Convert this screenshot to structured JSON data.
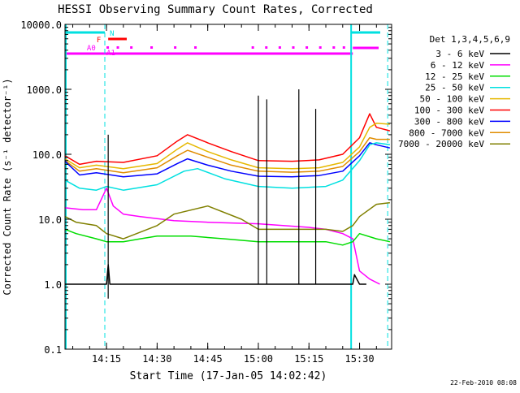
{
  "chart_data": {
    "type": "line",
    "title": "HESSI Observing Summary Count Rates, Corrected",
    "xlabel": "Start Time (17-Jan-05 14:02:42)",
    "ylabel": "Corrected Count Rate (s⁻¹ detector⁻¹)",
    "footer": "22-Feb-2010 08:08",
    "y_scale": "log",
    "ylim": [
      0.1,
      10000
    ],
    "xlim": [
      "14:02:42",
      "15:39:30"
    ],
    "x_ticks": [
      "14:15",
      "14:30",
      "14:45",
      "15:00",
      "15:15",
      "15:30"
    ],
    "y_ticks": [
      "0.1",
      "1.0",
      "10.0",
      "100.0",
      "1000.0",
      "10000.0"
    ],
    "legend": {
      "title": "Det 1,3,4,5,6,9",
      "placement": "right-outside",
      "entries": [
        {
          "label": "3 - 6 keV",
          "color": "#000000"
        },
        {
          "label": "6 - 12 keV",
          "color": "#ff00ff"
        },
        {
          "label": "12 - 25 keV",
          "color": "#00dd00"
        },
        {
          "label": "25 - 50 keV",
          "color": "#00e0e0"
        },
        {
          "label": "50 - 100 keV",
          "color": "#e6b800"
        },
        {
          "label": "100 - 300 keV",
          "color": "#ff0000"
        },
        {
          "label": "300 - 800 keV",
          "color": "#0000ff"
        },
        {
          "label": "800 - 7000 keV",
          "color": "#e08c00"
        },
        {
          "label": "7000 - 20000 keV",
          "color": "#808000"
        }
      ]
    },
    "flag_labels": [
      "N",
      "F",
      "A0",
      "A1"
    ],
    "series": [
      {
        "name": "100 - 300 keV",
        "color": "#ff0000",
        "x": [
          "14:02:42",
          "14:07",
          "14:12",
          "14:20",
          "14:30",
          "14:36",
          "14:39",
          "14:45",
          "14:52",
          "15:00",
          "15:10",
          "15:18",
          "15:25",
          "15:30",
          "15:33",
          "15:35",
          "15:39"
        ],
        "y": [
          95,
          70,
          78,
          75,
          95,
          160,
          200,
          150,
          110,
          80,
          78,
          82,
          100,
          180,
          420,
          260,
          230
        ]
      },
      {
        "name": "50 - 100 keV",
        "color": "#e6b800",
        "x": [
          "14:02:42",
          "14:07",
          "14:12",
          "14:20",
          "14:30",
          "14:36",
          "14:39",
          "14:45",
          "14:52",
          "15:00",
          "15:10",
          "15:18",
          "15:25",
          "15:30",
          "15:33",
          "15:35",
          "15:39"
        ],
        "y": [
          85,
          62,
          68,
          60,
          72,
          120,
          150,
          110,
          82,
          62,
          60,
          62,
          75,
          130,
          260,
          300,
          290
        ]
      },
      {
        "name": "800 - 7000 keV",
        "color": "#e08c00",
        "x": [
          "14:02:42",
          "14:07",
          "14:12",
          "14:20",
          "14:30",
          "14:36",
          "14:39",
          "14:45",
          "14:52",
          "15:00",
          "15:10",
          "15:18",
          "15:25",
          "15:30",
          "15:33",
          "15:35",
          "15:39"
        ],
        "y": [
          80,
          55,
          60,
          52,
          62,
          95,
          115,
          90,
          68,
          55,
          53,
          55,
          65,
          110,
          180,
          170,
          170
        ]
      },
      {
        "name": "300 - 800 keV",
        "color": "#0000ff",
        "x": [
          "14:02:42",
          "14:07",
          "14:12",
          "14:20",
          "14:30",
          "14:36",
          "14:39",
          "14:45",
          "14:52",
          "15:00",
          "15:10",
          "15:18",
          "15:25",
          "15:30",
          "15:33",
          "15:35",
          "15:39"
        ],
        "y": [
          78,
          48,
          52,
          45,
          50,
          72,
          85,
          68,
          55,
          46,
          45,
          47,
          55,
          95,
          150,
          140,
          125
        ]
      },
      {
        "name": "25 - 50 keV",
        "color": "#00e0e0",
        "x": [
          "14:02:42",
          "14:07",
          "14:12",
          "14:15",
          "14:20",
          "14:30",
          "14:38",
          "14:42",
          "14:50",
          "15:00",
          "15:10",
          "15:20",
          "15:25",
          "15:30",
          "15:33",
          "15:35",
          "15:39"
        ],
        "y": [
          40,
          30,
          28,
          32,
          28,
          34,
          55,
          60,
          42,
          32,
          30,
          32,
          40,
          80,
          140,
          150,
          140
        ]
      },
      {
        "name": "6 - 12 keV",
        "color": "#ff00ff",
        "x": [
          "14:02:42",
          "14:08",
          "14:12",
          "14:15",
          "14:17",
          "14:20",
          "14:25",
          "14:35",
          "14:45",
          "15:00",
          "15:15",
          "15:20",
          "15:25",
          "15:28",
          "15:30",
          "15:33",
          "15:36"
        ],
        "y": [
          15,
          14,
          14,
          30,
          16,
          12,
          11,
          9.5,
          9,
          8.5,
          7.5,
          7,
          6,
          5,
          1.6,
          1.2,
          1.0
        ]
      },
      {
        "name": "7000 - 20000 keV",
        "color": "#808000",
        "x": [
          "14:02:42",
          "14:06",
          "14:12",
          "14:15",
          "14:20",
          "14:30",
          "14:35",
          "14:45",
          "14:55",
          "15:00",
          "15:10",
          "15:20",
          "15:25",
          "15:28",
          "15:30",
          "15:35",
          "15:39"
        ],
        "y": [
          11,
          9,
          8,
          6,
          5,
          8,
          12,
          16,
          10,
          7,
          7,
          7,
          6.5,
          8,
          11,
          17,
          18
        ]
      },
      {
        "name": "12 - 25 keV",
        "color": "#00dd00",
        "x": [
          "14:02:42",
          "14:06",
          "14:12",
          "14:15",
          "14:20",
          "14:25",
          "14:30",
          "14:40",
          "14:50",
          "15:00",
          "15:10",
          "15:20",
          "15:25",
          "15:28",
          "15:30",
          "15:35",
          "15:39"
        ],
        "y": [
          7,
          6,
          5,
          4.5,
          4.5,
          5,
          5.5,
          5.5,
          5,
          4.5,
          4.5,
          4.5,
          4,
          4.5,
          6,
          5,
          4.5
        ]
      },
      {
        "name": "3 - 6 keV",
        "color": "#000000",
        "x": [
          "14:02:42",
          "14:12",
          "14:15",
          "14:15:30",
          "14:16",
          "14:17",
          "14:25",
          "14:35",
          "14:45",
          "15:00",
          "15:15",
          "15:28",
          "15:28:30",
          "15:30",
          "15:32"
        ],
        "y": [
          1,
          1,
          1,
          2,
          1,
          1,
          1,
          1,
          1,
          1,
          1,
          1,
          1.4,
          1,
          1
        ]
      }
    ]
  }
}
